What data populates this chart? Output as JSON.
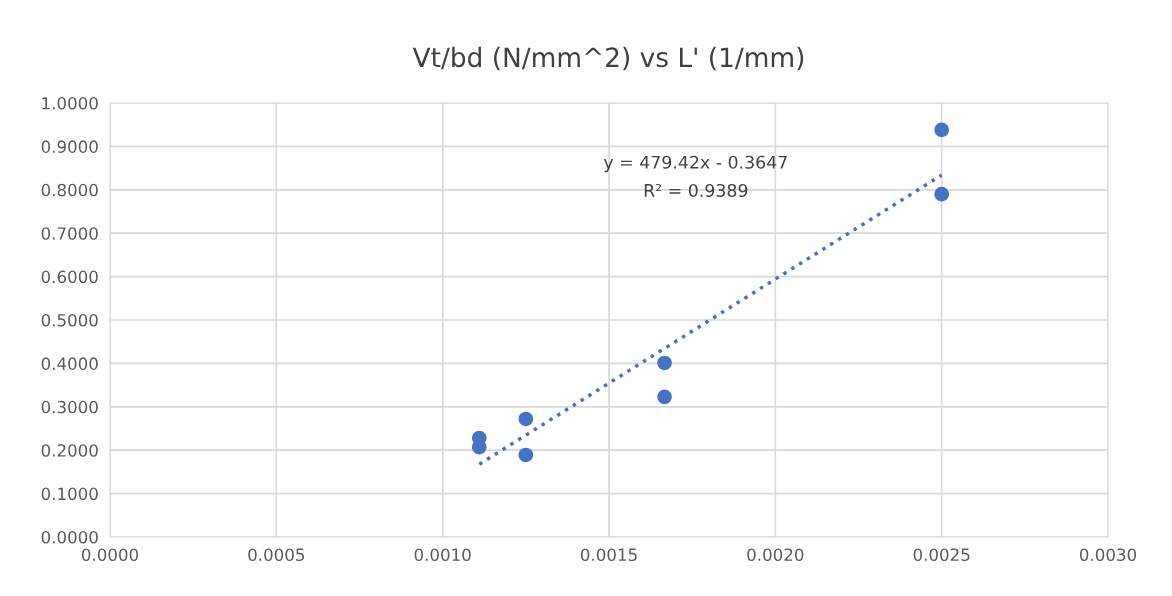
{
  "chart_data": {
    "type": "scatter",
    "title": "Vt/bd (N/mm^2) vs L' (1/mm)",
    "x": [
      0.00111,
      0.00111,
      0.00125,
      0.00125,
      0.001667,
      0.001667,
      0.0025,
      0.0025
    ],
    "series": [
      {
        "color": "#4472c4",
        "values": [
          0.228,
          0.207,
          0.272,
          0.189,
          0.401,
          0.323,
          0.938,
          0.79
        ],
        "marker": "circle"
      },
      {
        "type": "line",
        "color": "#4472c4",
        "line_style": "dotted",
        "marker": "none",
        "x": [
          0.00111,
          0.0025
        ],
        "values": [
          0.1675,
          0.8339
        ]
      }
    ],
    "annotations": [
      "y = 479.42x - 0.3647",
      "R² = 0.9389"
    ],
    "xlim": [
      0,
      0.003
    ],
    "xticks": [
      {
        "value": 0,
        "label": "0.0000"
      },
      {
        "value": 0.0005,
        "label": "0.0005"
      },
      {
        "value": 0.001,
        "label": "0.0010"
      },
      {
        "value": 0.0015,
        "label": "0.0015"
      },
      {
        "value": 0.002,
        "label": "0.0020"
      },
      {
        "value": 0.0025,
        "label": "0.0025"
      },
      {
        "value": 0.003,
        "label": "0.0030"
      }
    ],
    "ylim": [
      0,
      1
    ],
    "yticks": [
      {
        "value": 0,
        "label": "0.0000"
      },
      {
        "value": 0.1,
        "label": "0.1000"
      },
      {
        "value": 0.2,
        "label": "0.2000"
      },
      {
        "value": 0.3,
        "label": "0.3000"
      },
      {
        "value": 0.4,
        "label": "0.4000"
      },
      {
        "value": 0.5,
        "label": "0.5000"
      },
      {
        "value": 0.6,
        "label": "0.6000"
      },
      {
        "value": 0.7,
        "label": "0.7000"
      },
      {
        "value": 0.8,
        "label": "0.8000"
      },
      {
        "value": 0.9,
        "label": "0.9000"
      },
      {
        "value": 1,
        "label": "1.0000"
      }
    ],
    "grid": true
  }
}
